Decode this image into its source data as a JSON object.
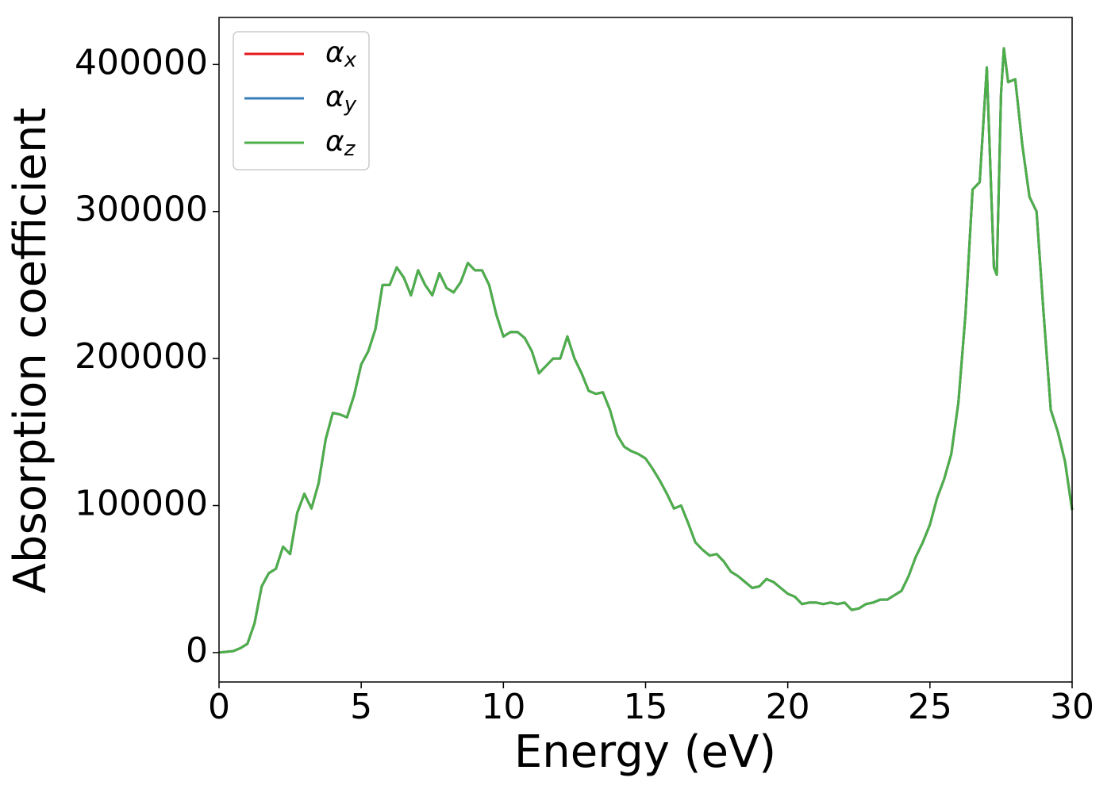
{
  "chart_data": {
    "type": "line",
    "xlabel": "Energy (eV)",
    "ylabel": "Absorption coefficient",
    "x": [
      0,
      0.25,
      0.5,
      0.75,
      1,
      1.25,
      1.5,
      1.75,
      2,
      2.25,
      2.5,
      2.75,
      3,
      3.25,
      3.5,
      3.75,
      4,
      4.25,
      4.5,
      4.75,
      5,
      5.25,
      5.5,
      5.75,
      6,
      6.25,
      6.5,
      6.75,
      7,
      7.25,
      7.5,
      7.75,
      8,
      8.25,
      8.5,
      8.75,
      9,
      9.25,
      9.5,
      9.75,
      10,
      10.25,
      10.5,
      10.75,
      11,
      11.25,
      11.5,
      11.75,
      12,
      12.25,
      12.5,
      12.75,
      13,
      13.25,
      13.5,
      13.75,
      14,
      14.25,
      14.5,
      14.75,
      15,
      15.25,
      15.5,
      15.75,
      16,
      16.25,
      16.5,
      16.75,
      17,
      17.25,
      17.5,
      17.75,
      18,
      18.25,
      18.5,
      18.75,
      19,
      19.25,
      19.5,
      19.75,
      20,
      20.25,
      20.5,
      20.75,
      21,
      21.25,
      21.5,
      21.75,
      22,
      22.25,
      22.5,
      22.75,
      23,
      23.25,
      23.5,
      23.75,
      24,
      24.25,
      24.5,
      24.75,
      25,
      25.25,
      25.5,
      25.75,
      26,
      26.25,
      26.5,
      26.75,
      27,
      27.25,
      27.35,
      27.5,
      27.6,
      27.75,
      28,
      28.25,
      28.5,
      28.75,
      29,
      29.25,
      29.5,
      29.75,
      30
    ],
    "series": [
      {
        "name": "αx",
        "color": "#e41a1c",
        "values": [
          0,
          500,
          1000,
          3000,
          6000,
          20000,
          45000,
          54000,
          57000,
          72000,
          67000,
          95000,
          108000,
          98000,
          115000,
          145000,
          163000,
          162000,
          160000,
          175000,
          196000,
          205000,
          220000,
          250000,
          250000,
          262000,
          255000,
          243000,
          260000,
          250000,
          243000,
          258000,
          248000,
          245000,
          252000,
          265000,
          260000,
          260000,
          250000,
          230000,
          215000,
          218000,
          218000,
          214000,
          205000,
          190000,
          195000,
          200000,
          200000,
          215000,
          200000,
          190000,
          178000,
          176000,
          177000,
          165000,
          148000,
          140000,
          137000,
          135000,
          132000,
          125000,
          117000,
          108000,
          98000,
          100000,
          88000,
          75000,
          70000,
          66000,
          67000,
          62000,
          55000,
          52000,
          48000,
          44000,
          45000,
          50000,
          48000,
          44000,
          40000,
          38000,
          33000,
          34000,
          34000,
          33000,
          34000,
          33000,
          34000,
          29000,
          30000,
          33000,
          34000,
          36000,
          36000,
          39000,
          42000,
          52000,
          65000,
          75000,
          87000,
          105000,
          118000,
          135000,
          170000,
          230000,
          315000,
          320000,
          398000,
          262000,
          257000,
          380000,
          411000,
          388000,
          390000,
          345000,
          310000,
          300000,
          230000,
          165000,
          150000,
          130000,
          97000
        ]
      },
      {
        "name": "αy",
        "color": "#377eb8",
        "values": [
          0,
          500,
          1000,
          3000,
          6000,
          20000,
          45000,
          54000,
          57000,
          72000,
          67000,
          95000,
          108000,
          98000,
          115000,
          145000,
          163000,
          162000,
          160000,
          175000,
          196000,
          205000,
          220000,
          250000,
          250000,
          262000,
          255000,
          243000,
          260000,
          250000,
          243000,
          258000,
          248000,
          245000,
          252000,
          265000,
          260000,
          260000,
          250000,
          230000,
          215000,
          218000,
          218000,
          214000,
          205000,
          190000,
          195000,
          200000,
          200000,
          215000,
          200000,
          190000,
          178000,
          176000,
          177000,
          165000,
          148000,
          140000,
          137000,
          135000,
          132000,
          125000,
          117000,
          108000,
          98000,
          100000,
          88000,
          75000,
          70000,
          66000,
          67000,
          62000,
          55000,
          52000,
          48000,
          44000,
          45000,
          50000,
          48000,
          44000,
          40000,
          38000,
          33000,
          34000,
          34000,
          33000,
          34000,
          33000,
          34000,
          29000,
          30000,
          33000,
          34000,
          36000,
          36000,
          39000,
          42000,
          52000,
          65000,
          75000,
          87000,
          105000,
          118000,
          135000,
          170000,
          230000,
          315000,
          320000,
          398000,
          262000,
          257000,
          380000,
          411000,
          388000,
          390000,
          345000,
          310000,
          300000,
          230000,
          165000,
          150000,
          130000,
          97000
        ]
      },
      {
        "name": "αz",
        "color": "#4daf4a",
        "values": [
          0,
          500,
          1000,
          3000,
          6000,
          20000,
          45000,
          54000,
          57000,
          72000,
          67000,
          95000,
          108000,
          98000,
          115000,
          145000,
          163000,
          162000,
          160000,
          175000,
          196000,
          205000,
          220000,
          250000,
          250000,
          262000,
          255000,
          243000,
          260000,
          250000,
          243000,
          258000,
          248000,
          245000,
          252000,
          265000,
          260000,
          260000,
          250000,
          230000,
          215000,
          218000,
          218000,
          214000,
          205000,
          190000,
          195000,
          200000,
          200000,
          215000,
          200000,
          190000,
          178000,
          176000,
          177000,
          165000,
          148000,
          140000,
          137000,
          135000,
          132000,
          125000,
          117000,
          108000,
          98000,
          100000,
          88000,
          75000,
          70000,
          66000,
          67000,
          62000,
          55000,
          52000,
          48000,
          44000,
          45000,
          50000,
          48000,
          44000,
          40000,
          38000,
          33000,
          34000,
          34000,
          33000,
          34000,
          33000,
          34000,
          29000,
          30000,
          33000,
          34000,
          36000,
          36000,
          39000,
          42000,
          52000,
          65000,
          75000,
          87000,
          105000,
          118000,
          135000,
          170000,
          230000,
          315000,
          320000,
          398000,
          262000,
          257000,
          380000,
          411000,
          388000,
          390000,
          345000,
          310000,
          300000,
          230000,
          165000,
          150000,
          130000,
          97000
        ]
      }
    ],
    "xlim": [
      0,
      30
    ],
    "xticks": [
      0,
      5,
      10,
      15,
      20,
      25,
      30
    ],
    "ylim": [
      -20000,
      432000
    ],
    "yticks": [
      0,
      100000,
      200000,
      300000,
      400000
    ],
    "grid": false,
    "legend": "upper left"
  }
}
